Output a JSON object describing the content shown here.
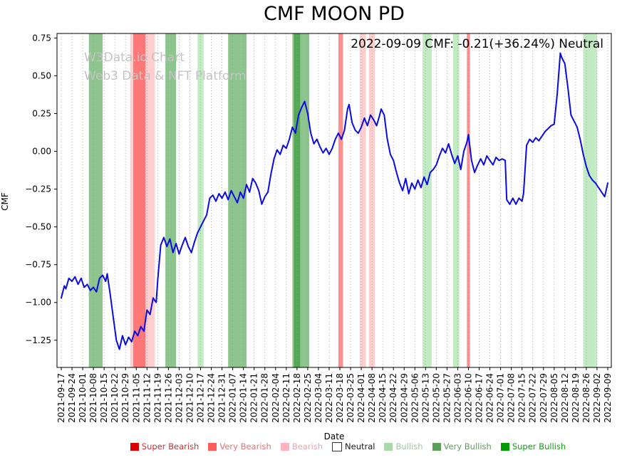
{
  "title": "CMF MOON PD",
  "watermark": {
    "line1": "W3Data.io Chart",
    "line2": "Web3 Data & NFT Platform"
  },
  "annotation": "2022-09-09 CMF: -0.21(+36.24%) Neutral",
  "chart_data": {
    "type": "line",
    "title": "CMF MOON PD",
    "xlabel": "Date",
    "ylabel": "CMF",
    "ylim": [
      -1.43,
      0.78
    ],
    "yticks": [
      0.75,
      0.5,
      0.25,
      0.0,
      -0.25,
      -0.5,
      -0.75,
      -1.0,
      -1.25
    ],
    "grid": "vertical-dotted",
    "legend_position": "bottom",
    "x_tick_labels": [
      "2021-09-17",
      "2021-09-24",
      "2021-10-01",
      "2021-10-08",
      "2021-10-15",
      "2021-10-22",
      "2021-10-29",
      "2021-11-05",
      "2021-11-12",
      "2021-11-19",
      "2021-11-26",
      "2021-12-03",
      "2021-12-10",
      "2021-12-17",
      "2021-12-24",
      "2021-12-31",
      "2022-01-07",
      "2022-01-14",
      "2022-01-21",
      "2022-01-28",
      "2022-02-04",
      "2022-02-11",
      "2022-02-18",
      "2022-02-25",
      "2022-03-04",
      "2022-03-11",
      "2022-03-18",
      "2022-03-25",
      "2022-04-01",
      "2022-04-08",
      "2022-04-15",
      "2022-04-22",
      "2022-04-29",
      "2022-05-06",
      "2022-05-13",
      "2022-05-20",
      "2022-05-27",
      "2022-06-03",
      "2022-06-10",
      "2022-06-17",
      "2022-06-24",
      "2022-07-01",
      "2022-07-08",
      "2022-07-15",
      "2022-07-22",
      "2022-07-29",
      "2022-08-05",
      "2022-08-12",
      "2022-08-19",
      "2022-08-26",
      "2022-09-02",
      "2022-09-09"
    ],
    "series": [
      {
        "name": "CMF",
        "color": "#0b0be0",
        "points": [
          [
            "2021-09-17",
            -0.97
          ],
          [
            "2021-09-19",
            -0.89
          ],
          [
            "2021-09-20",
            -0.91
          ],
          [
            "2021-09-22",
            -0.84
          ],
          [
            "2021-09-24",
            -0.86
          ],
          [
            "2021-09-26",
            -0.83
          ],
          [
            "2021-09-28",
            -0.88
          ],
          [
            "2021-09-30",
            -0.84
          ],
          [
            "2021-10-02",
            -0.9
          ],
          [
            "2021-10-04",
            -0.88
          ],
          [
            "2021-10-06",
            -0.92
          ],
          [
            "2021-10-08",
            -0.9
          ],
          [
            "2021-10-10",
            -0.93
          ],
          [
            "2021-10-12",
            -0.84
          ],
          [
            "2021-10-14",
            -0.82
          ],
          [
            "2021-10-16",
            -0.86
          ],
          [
            "2021-10-17",
            -0.81
          ],
          [
            "2021-10-19",
            -0.95
          ],
          [
            "2021-10-21",
            -1.1
          ],
          [
            "2021-10-23",
            -1.25
          ],
          [
            "2021-10-25",
            -1.31
          ],
          [
            "2021-10-27",
            -1.22
          ],
          [
            "2021-10-29",
            -1.28
          ],
          [
            "2021-10-31",
            -1.23
          ],
          [
            "2021-11-02",
            -1.26
          ],
          [
            "2021-11-04",
            -1.19
          ],
          [
            "2021-11-06",
            -1.22
          ],
          [
            "2021-11-08",
            -1.16
          ],
          [
            "2021-11-10",
            -1.19
          ],
          [
            "2021-11-12",
            -1.05
          ],
          [
            "2021-11-14",
            -1.08
          ],
          [
            "2021-11-16",
            -0.97
          ],
          [
            "2021-11-18",
            -1.0
          ],
          [
            "2021-11-19",
            -0.85
          ],
          [
            "2021-11-21",
            -0.62
          ],
          [
            "2021-11-23",
            -0.57
          ],
          [
            "2021-11-25",
            -0.63
          ],
          [
            "2021-11-27",
            -0.58
          ],
          [
            "2021-11-29",
            -0.67
          ],
          [
            "2021-12-01",
            -0.61
          ],
          [
            "2021-12-03",
            -0.68
          ],
          [
            "2021-12-05",
            -0.62
          ],
          [
            "2021-12-07",
            -0.57
          ],
          [
            "2021-12-09",
            -0.63
          ],
          [
            "2021-12-11",
            -0.67
          ],
          [
            "2021-12-13",
            -0.6
          ],
          [
            "2021-12-15",
            -0.54
          ],
          [
            "2021-12-17",
            -0.5
          ],
          [
            "2021-12-19",
            -0.46
          ],
          [
            "2021-12-21",
            -0.42
          ],
          [
            "2021-12-23",
            -0.31
          ],
          [
            "2021-12-25",
            -0.29
          ],
          [
            "2021-12-27",
            -0.33
          ],
          [
            "2021-12-29",
            -0.28
          ],
          [
            "2021-12-31",
            -0.31
          ],
          [
            "2022-01-02",
            -0.27
          ],
          [
            "2022-01-04",
            -0.32
          ],
          [
            "2022-01-06",
            -0.26
          ],
          [
            "2022-01-08",
            -0.3
          ],
          [
            "2022-01-10",
            -0.34
          ],
          [
            "2022-01-12",
            -0.27
          ],
          [
            "2022-01-14",
            -0.31
          ],
          [
            "2022-01-16",
            -0.22
          ],
          [
            "2022-01-18",
            -0.27
          ],
          [
            "2022-01-20",
            -0.18
          ],
          [
            "2022-01-22",
            -0.21
          ],
          [
            "2022-01-24",
            -0.26
          ],
          [
            "2022-01-26",
            -0.35
          ],
          [
            "2022-01-28",
            -0.3
          ],
          [
            "2022-01-30",
            -0.27
          ],
          [
            "2022-02-01",
            -0.15
          ],
          [
            "2022-02-03",
            -0.05
          ],
          [
            "2022-02-05",
            0.01
          ],
          [
            "2022-02-07",
            -0.02
          ],
          [
            "2022-02-09",
            0.04
          ],
          [
            "2022-02-11",
            0.02
          ],
          [
            "2022-02-13",
            0.08
          ],
          [
            "2022-02-15",
            0.16
          ],
          [
            "2022-02-17",
            0.12
          ],
          [
            "2022-02-19",
            0.24
          ],
          [
            "2022-02-21",
            0.29
          ],
          [
            "2022-02-23",
            0.33
          ],
          [
            "2022-02-25",
            0.25
          ],
          [
            "2022-02-27",
            0.12
          ],
          [
            "2022-03-01",
            0.05
          ],
          [
            "2022-03-03",
            0.08
          ],
          [
            "2022-03-05",
            0.03
          ],
          [
            "2022-03-07",
            -0.01
          ],
          [
            "2022-03-09",
            0.02
          ],
          [
            "2022-03-11",
            -0.02
          ],
          [
            "2022-03-13",
            0.02
          ],
          [
            "2022-03-15",
            0.08
          ],
          [
            "2022-03-17",
            0.12
          ],
          [
            "2022-03-19",
            0.08
          ],
          [
            "2022-03-21",
            0.14
          ],
          [
            "2022-03-23",
            0.28
          ],
          [
            "2022-03-24",
            0.31
          ],
          [
            "2022-03-26",
            0.19
          ],
          [
            "2022-03-28",
            0.14
          ],
          [
            "2022-03-30",
            0.12
          ],
          [
            "2022-04-01",
            0.16
          ],
          [
            "2022-04-03",
            0.22
          ],
          [
            "2022-04-05",
            0.17
          ],
          [
            "2022-04-07",
            0.24
          ],
          [
            "2022-04-09",
            0.21
          ],
          [
            "2022-04-11",
            0.17
          ],
          [
            "2022-04-13",
            0.24
          ],
          [
            "2022-04-14",
            0.28
          ],
          [
            "2022-04-16",
            0.24
          ],
          [
            "2022-04-18",
            0.08
          ],
          [
            "2022-04-20",
            -0.02
          ],
          [
            "2022-04-22",
            -0.06
          ],
          [
            "2022-04-24",
            -0.14
          ],
          [
            "2022-04-26",
            -0.21
          ],
          [
            "2022-04-28",
            -0.26
          ],
          [
            "2022-04-30",
            -0.18
          ],
          [
            "2022-05-02",
            -0.28
          ],
          [
            "2022-05-04",
            -0.21
          ],
          [
            "2022-05-06",
            -0.25
          ],
          [
            "2022-05-08",
            -0.19
          ],
          [
            "2022-05-10",
            -0.24
          ],
          [
            "2022-05-12",
            -0.17
          ],
          [
            "2022-05-14",
            -0.22
          ],
          [
            "2022-05-16",
            -0.14
          ],
          [
            "2022-05-18",
            -0.12
          ],
          [
            "2022-05-20",
            -0.09
          ],
          [
            "2022-05-22",
            -0.03
          ],
          [
            "2022-05-24",
            0.02
          ],
          [
            "2022-05-26",
            -0.01
          ],
          [
            "2022-05-28",
            0.05
          ],
          [
            "2022-05-30",
            -0.02
          ],
          [
            "2022-06-01",
            -0.08
          ],
          [
            "2022-06-03",
            -0.03
          ],
          [
            "2022-06-05",
            -0.12
          ],
          [
            "2022-06-07",
            0.0
          ],
          [
            "2022-06-09",
            0.06
          ],
          [
            "2022-06-10",
            0.11
          ],
          [
            "2022-06-12",
            -0.06
          ],
          [
            "2022-06-14",
            -0.14
          ],
          [
            "2022-06-16",
            -0.09
          ],
          [
            "2022-06-18",
            -0.05
          ],
          [
            "2022-06-20",
            -0.09
          ],
          [
            "2022-06-22",
            -0.03
          ],
          [
            "2022-06-24",
            -0.06
          ],
          [
            "2022-06-26",
            -0.09
          ],
          [
            "2022-06-28",
            -0.04
          ],
          [
            "2022-06-30",
            -0.06
          ],
          [
            "2022-07-02",
            -0.05
          ],
          [
            "2022-07-04",
            -0.06
          ],
          [
            "2022-07-05",
            -0.32
          ],
          [
            "2022-07-07",
            -0.35
          ],
          [
            "2022-07-09",
            -0.31
          ],
          [
            "2022-07-11",
            -0.35
          ],
          [
            "2022-07-13",
            -0.31
          ],
          [
            "2022-07-15",
            -0.33
          ],
          [
            "2022-07-16",
            -0.28
          ],
          [
            "2022-07-18",
            0.04
          ],
          [
            "2022-07-20",
            0.08
          ],
          [
            "2022-07-22",
            0.06
          ],
          [
            "2022-07-24",
            0.09
          ],
          [
            "2022-07-26",
            0.07
          ],
          [
            "2022-07-28",
            0.1
          ],
          [
            "2022-07-30",
            0.13
          ],
          [
            "2022-08-01",
            0.15
          ],
          [
            "2022-08-03",
            0.17
          ],
          [
            "2022-08-05",
            0.18
          ],
          [
            "2022-08-07",
            0.38
          ],
          [
            "2022-08-09",
            0.65
          ],
          [
            "2022-08-10",
            0.62
          ],
          [
            "2022-08-12",
            0.58
          ],
          [
            "2022-08-14",
            0.42
          ],
          [
            "2022-08-16",
            0.24
          ],
          [
            "2022-08-18",
            0.2
          ],
          [
            "2022-08-20",
            0.16
          ],
          [
            "2022-08-22",
            0.08
          ],
          [
            "2022-08-24",
            -0.02
          ],
          [
            "2022-08-26",
            -0.1
          ],
          [
            "2022-08-28",
            -0.16
          ],
          [
            "2022-08-30",
            -0.19
          ],
          [
            "2022-09-01",
            -0.21
          ],
          [
            "2022-09-03",
            -0.24
          ],
          [
            "2022-09-05",
            -0.27
          ],
          [
            "2022-09-07",
            -0.3
          ],
          [
            "2022-09-09",
            -0.21
          ]
        ]
      }
    ],
    "bands": [
      {
        "start": "2021-10-05",
        "end": "2021-10-14",
        "label": "very_bullish"
      },
      {
        "start": "2021-11-01",
        "end": "2021-11-17",
        "label": "bearish"
      },
      {
        "start": "2021-11-03",
        "end": "2021-11-11",
        "label": "very_bearish"
      },
      {
        "start": "2021-11-24",
        "end": "2021-12-01",
        "label": "very_bullish"
      },
      {
        "start": "2021-12-15",
        "end": "2021-12-19",
        "label": "bullish"
      },
      {
        "start": "2022-01-04",
        "end": "2022-01-16",
        "label": "very_bullish"
      },
      {
        "start": "2022-02-15",
        "end": "2022-02-26",
        "label": "very_bullish"
      },
      {
        "start": "2022-02-16",
        "end": "2022-02-20",
        "label": "very_bullish"
      },
      {
        "start": "2022-03-17",
        "end": "2022-03-20",
        "label": "very_bearish"
      },
      {
        "start": "2022-03-31",
        "end": "2022-04-04",
        "label": "bearish"
      },
      {
        "start": "2022-04-06",
        "end": "2022-04-10",
        "label": "bearish"
      },
      {
        "start": "2022-05-11",
        "end": "2022-05-17",
        "label": "bullish"
      },
      {
        "start": "2022-05-31",
        "end": "2022-06-04",
        "label": "bullish"
      },
      {
        "start": "2022-06-09",
        "end": "2022-06-11",
        "label": "very_bearish"
      },
      {
        "start": "2022-08-24",
        "end": "2022-09-02",
        "label": "bullish"
      }
    ],
    "band_colors": {
      "super_bearish": "#cc0000",
      "very_bearish": "#ff2222",
      "bearish": "#ff9f9f",
      "neutral": "#ffffff",
      "bullish": "#88d888",
      "very_bullish": "#1e8a1e",
      "super_bullish": "#007700"
    }
  },
  "legend": {
    "items": [
      {
        "key": "super_bearish",
        "label": "Super Bearish",
        "swatch": "#d80000",
        "text": "#cc3333"
      },
      {
        "key": "very_bearish",
        "label": "Very Bearish",
        "swatch": "#ff5c5c",
        "text": "#e57373"
      },
      {
        "key": "bearish",
        "label": "Bearish",
        "swatch": "#ffb3bc",
        "text": "#efa3ad"
      },
      {
        "key": "neutral",
        "label": "Neutral",
        "swatch": "#ffffff",
        "text": "#1a1a1a"
      },
      {
        "key": "bullish",
        "label": "Bullish",
        "swatch": "#a9d9a9",
        "text": "#9cc99c"
      },
      {
        "key": "very_bullish",
        "label": "Very Bullish",
        "swatch": "#5ba05b",
        "text": "#5f9e5f"
      },
      {
        "key": "super_bullish",
        "label": "Super Bullish",
        "swatch": "#009b00",
        "text": "#15a015"
      }
    ]
  }
}
